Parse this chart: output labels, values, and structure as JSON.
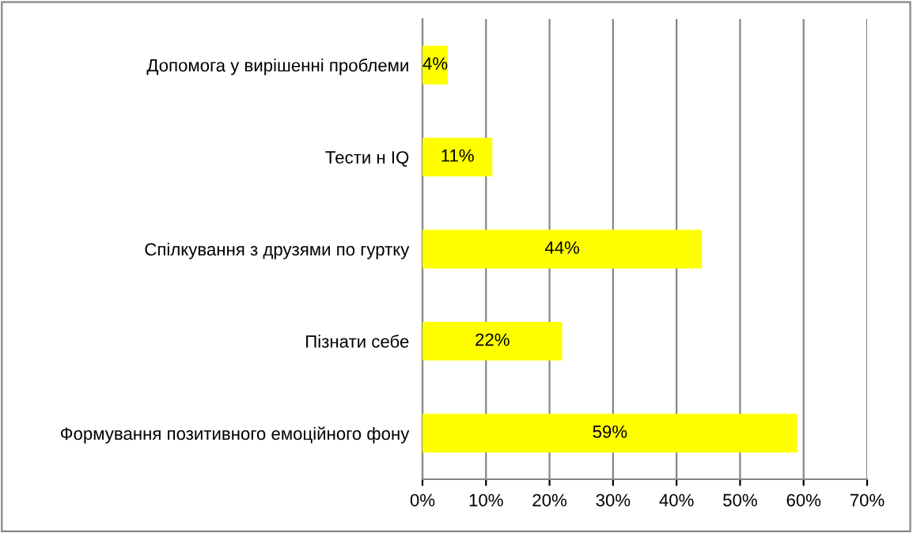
{
  "chart_data": {
    "type": "bar",
    "orientation": "horizontal",
    "categories": [
      "Допомога у вирішенні проблеми",
      "Тести н IQ",
      "Спілкування з друзями по гуртку",
      "Пізнати себе",
      "Формування позитивного емоційного фону"
    ],
    "values": [
      4,
      11,
      44,
      22,
      59
    ],
    "value_labels": [
      "4%",
      "11%",
      "44%",
      "22%",
      "59%"
    ],
    "color": "#ffff00",
    "xlim": [
      0,
      70
    ],
    "xticks": [
      {
        "value": 0,
        "label": "0%"
      },
      {
        "value": 10,
        "label": "10%"
      },
      {
        "value": 20,
        "label": "20%"
      },
      {
        "value": 30,
        "label": "30%"
      },
      {
        "value": 40,
        "label": "40%"
      },
      {
        "value": 50,
        "label": "50%"
      },
      {
        "value": 60,
        "label": "60%"
      },
      {
        "value": 70,
        "label": "70%"
      }
    ],
    "grid": "x",
    "legend": false
  }
}
